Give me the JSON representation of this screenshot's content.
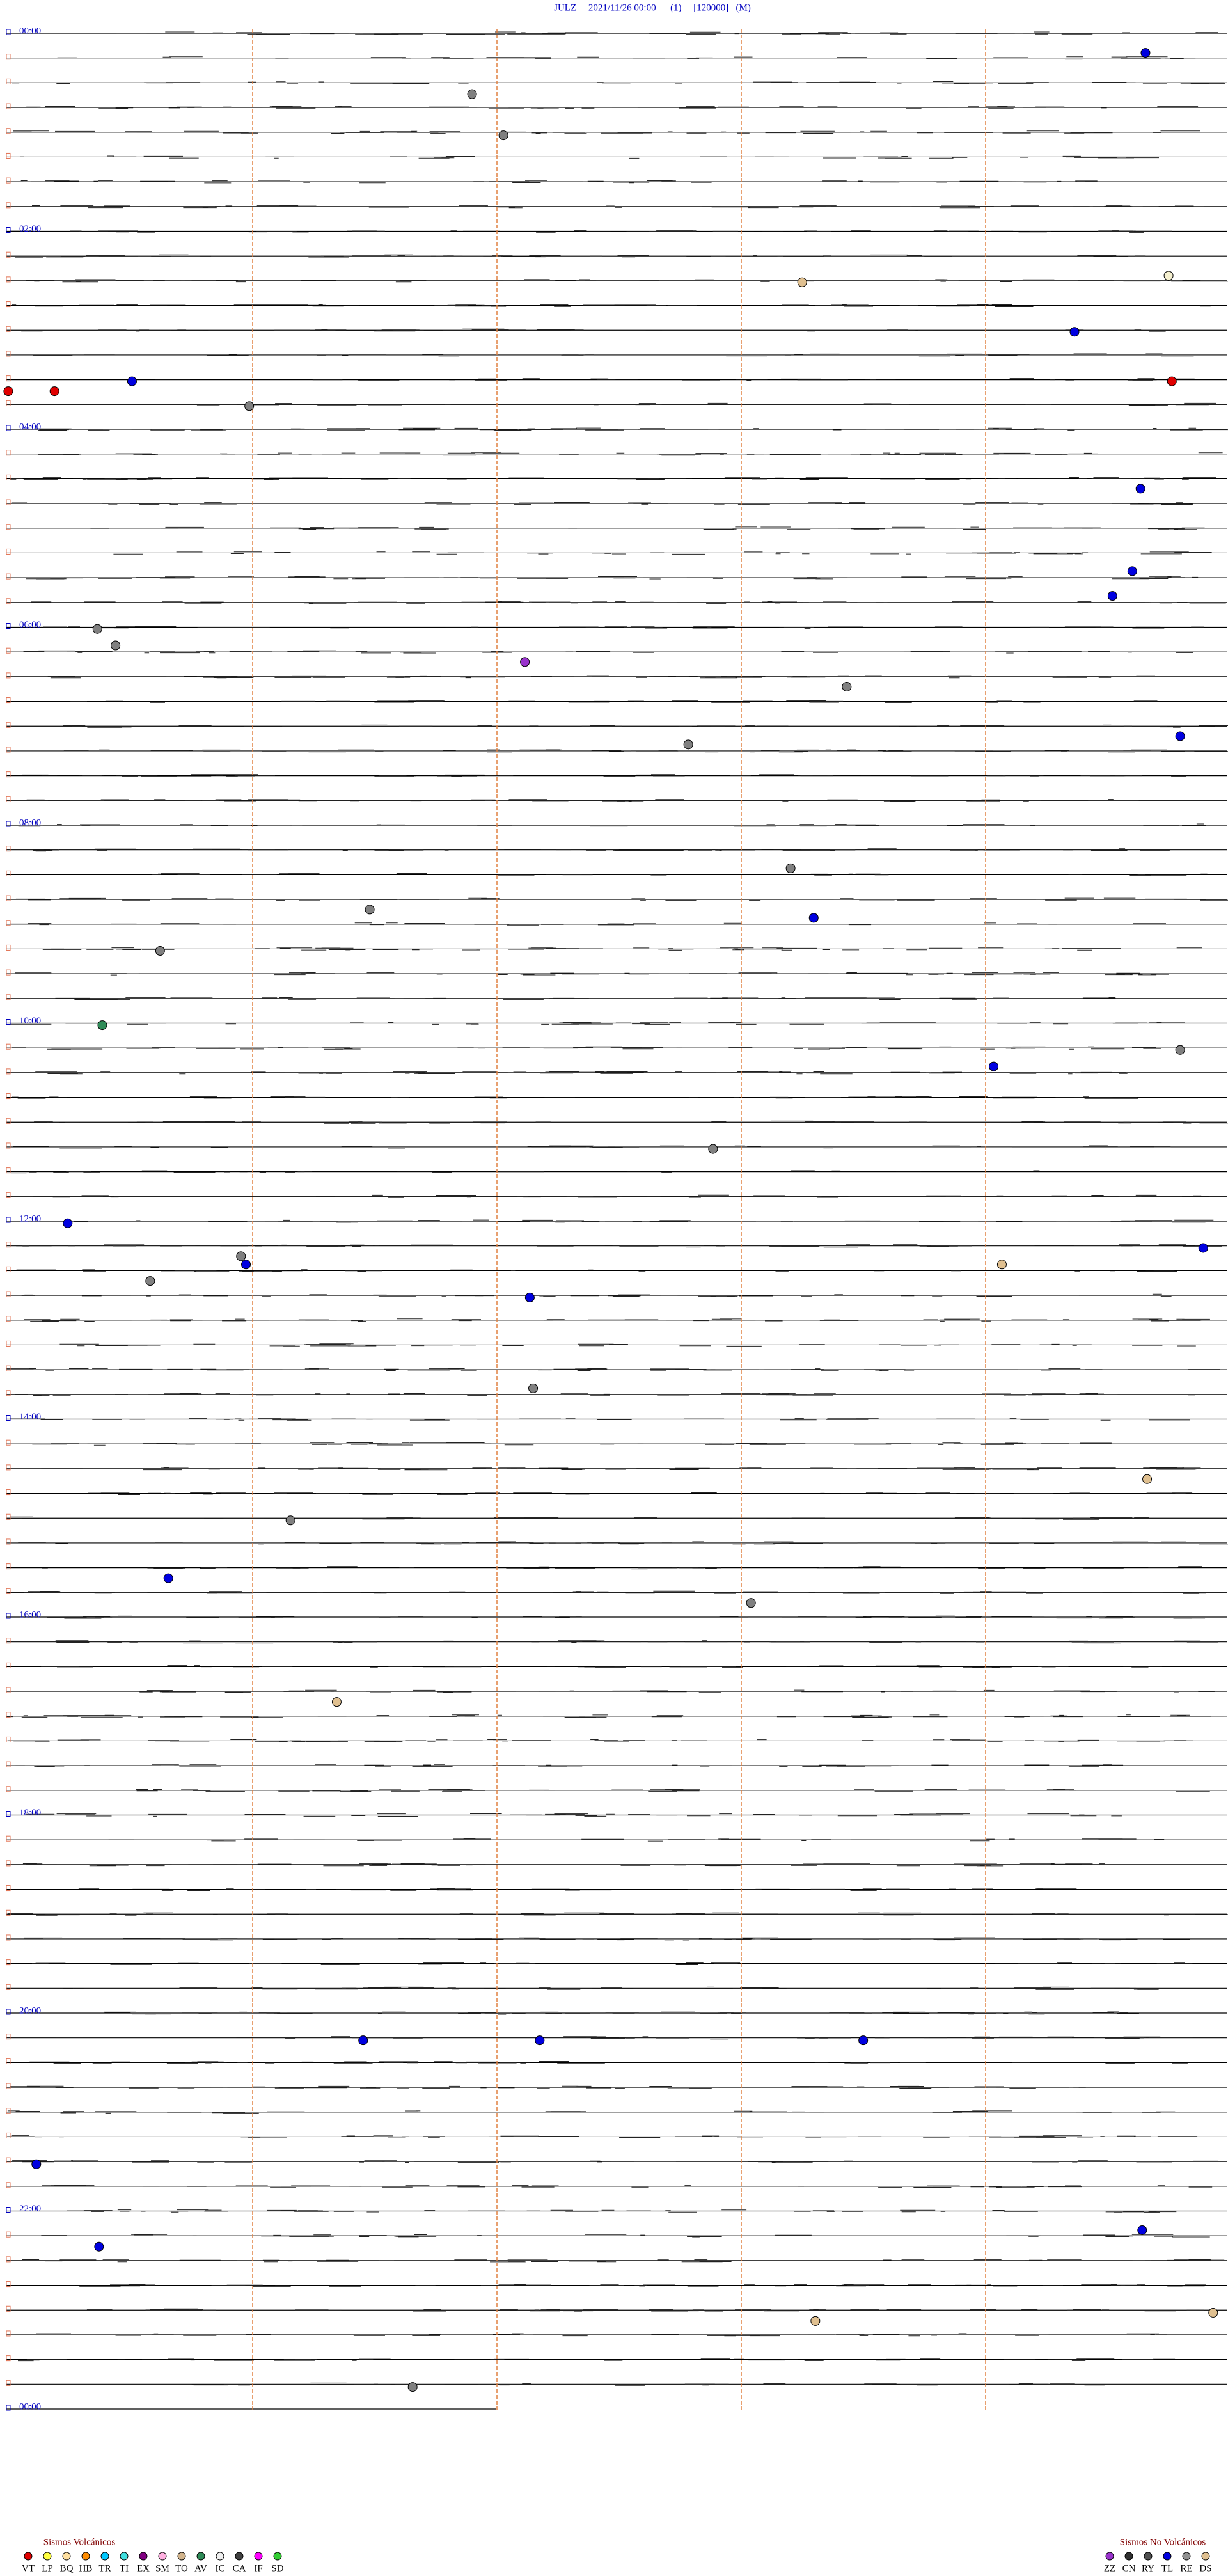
{
  "header": {
    "title": "JULZ     2021/11/26 00:00      (1)     [120000]   (M)"
  },
  "hour_labels": [
    "00:00",
    "02:00",
    "04:00",
    "06:00",
    "08:00",
    "10:00",
    "12:00",
    "14:00",
    "16:00",
    "18:00",
    "20:00",
    "22:00",
    "00:00"
  ],
  "legend_volcanic": {
    "title": "Sismos Volcánicos",
    "items": [
      {
        "code": "VT",
        "color": "#e00000"
      },
      {
        "code": "LP",
        "color": "#ffff40"
      },
      {
        "code": "BQ",
        "color": "#ffe0a0"
      },
      {
        "code": "HB",
        "color": "#ff8c00"
      },
      {
        "code": "TR",
        "color": "#00c8ff"
      },
      {
        "code": "TI",
        "color": "#40e0e0"
      },
      {
        "code": "EX",
        "color": "#800080"
      },
      {
        "code": "SM",
        "color": "#ffb0e0"
      },
      {
        "code": "TO",
        "color": "#d2b48c"
      },
      {
        "code": "AV",
        "color": "#2e8b57"
      },
      {
        "code": "IC",
        "color": "#f0f0f0"
      },
      {
        "code": "CA",
        "color": "#404040"
      },
      {
        "code": "IF",
        "color": "#ff00ff"
      },
      {
        "code": "SD",
        "color": "#32cd32"
      }
    ]
  },
  "legend_non_volcanic": {
    "title": "Sismos No Volcánicos",
    "items": [
      {
        "code": "ZZ",
        "color": "#9932cc"
      },
      {
        "code": "CN",
        "color": "#303030"
      },
      {
        "code": "RY",
        "color": "#505050"
      },
      {
        "code": "TL",
        "color": "#0000e0"
      },
      {
        "code": "RE",
        "color": "#909090"
      },
      {
        "code": "DS",
        "color": "#e0c090"
      }
    ]
  }
}
